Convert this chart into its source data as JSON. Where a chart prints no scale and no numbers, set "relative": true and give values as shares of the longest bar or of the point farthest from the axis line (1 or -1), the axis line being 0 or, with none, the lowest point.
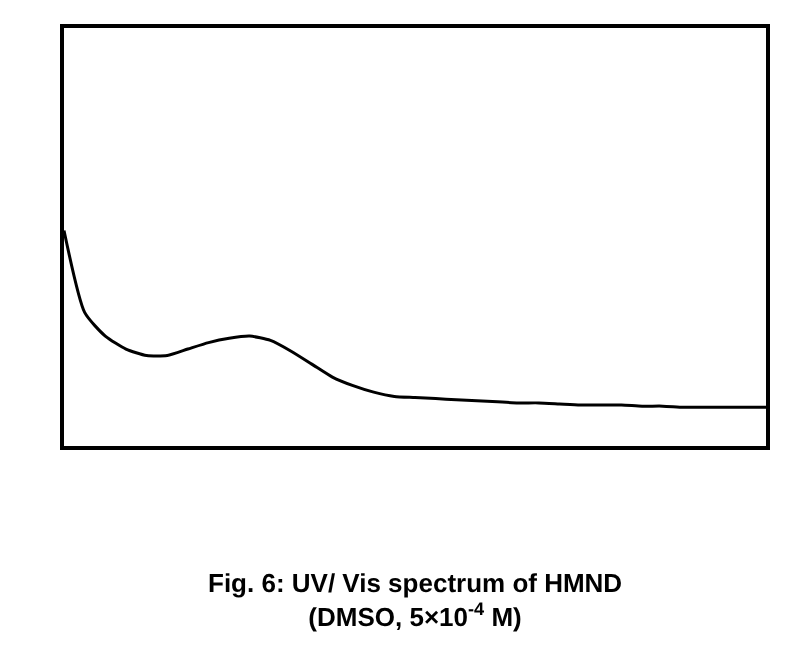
{
  "chart_data": {
    "type": "line",
    "relative": true,
    "color": "#000000",
    "line_style": "solid",
    "marker": "none",
    "legend": false,
    "title": "Fig. 6: UV/ Vis spectrum of HMND\n(DMSO, 5×10$^{-4}$ M)",
    "categories": [
      null,
      null,
      null,
      null,
      null,
      null,
      null,
      null,
      null,
      null,
      null,
      null,
      null,
      null,
      null,
      null,
      null,
      null,
      null,
      null,
      null,
      null,
      null,
      null,
      null,
      null,
      null,
      null,
      null,
      null,
      null,
      null,
      null,
      null,
      null
    ],
    "values": [
      1.0,
      0.62,
      0.51,
      0.45,
      0.42,
      0.42,
      0.45,
      0.48,
      0.5,
      0.51,
      0.49,
      0.44,
      0.38,
      0.32,
      0.28,
      0.25,
      0.23,
      0.225,
      0.22,
      0.215,
      0.21,
      0.205,
      0.2,
      0.2,
      0.195,
      0.19,
      0.19,
      0.19,
      0.185,
      0.185,
      0.18,
      0.18,
      0.18,
      0.18,
      0.18
    ]
  }
}
